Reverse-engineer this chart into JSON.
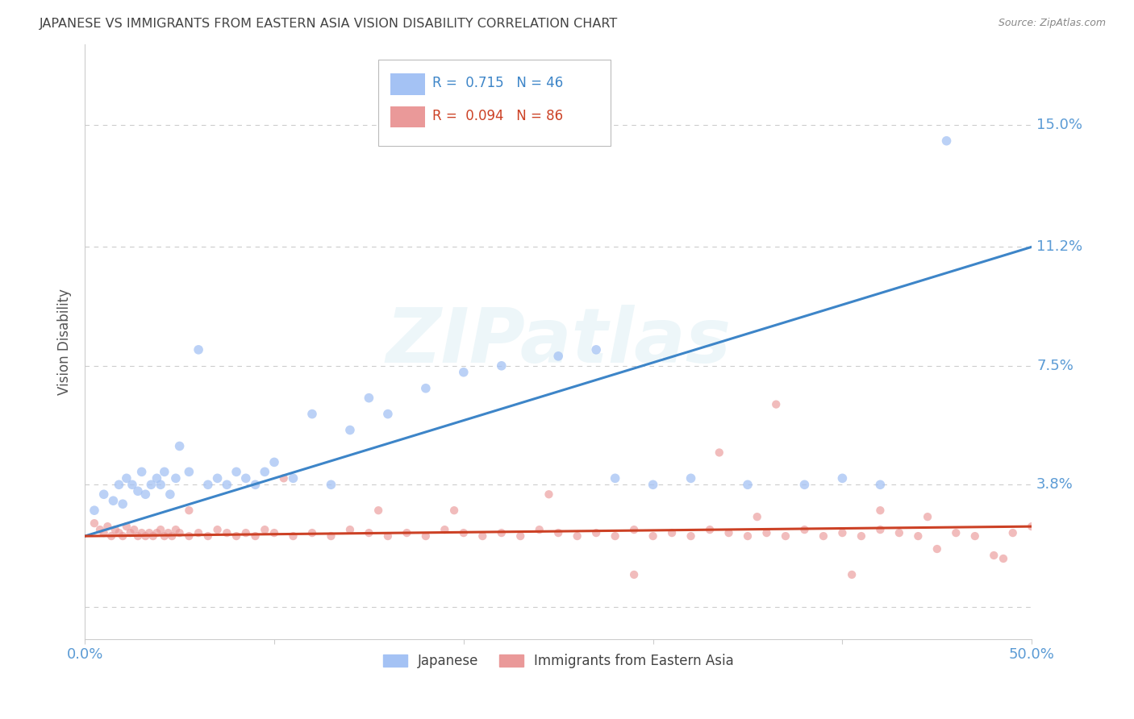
{
  "title": "JAPANESE VS IMMIGRANTS FROM EASTERN ASIA VISION DISABILITY CORRELATION CHART",
  "source": "Source: ZipAtlas.com",
  "ylabel": "Vision Disability",
  "watermark": "ZIPatlas",
  "xlim": [
    0.0,
    0.5
  ],
  "ylim": [
    -0.01,
    0.175
  ],
  "yticks": [
    0.0,
    0.038,
    0.075,
    0.112,
    0.15
  ],
  "ytick_labels": [
    "",
    "3.8%",
    "7.5%",
    "11.2%",
    "15.0%"
  ],
  "xticks": [
    0.0,
    0.1,
    0.2,
    0.3,
    0.4,
    0.5
  ],
  "xtick_labels": [
    "0.0%",
    "",
    "",
    "",
    "",
    "50.0%"
  ],
  "blue_color": "#a4c2f4",
  "pink_color": "#ea9999",
  "blue_line_color": "#3d85c8",
  "pink_line_color": "#cc4125",
  "blue_R": "0.715",
  "blue_N": "46",
  "pink_R": "0.094",
  "pink_N": "86",
  "legend_label_blue": "Japanese",
  "legend_label_pink": "Immigrants from Eastern Asia",
  "blue_scatter_x": [
    0.005,
    0.01,
    0.015,
    0.018,
    0.02,
    0.022,
    0.025,
    0.028,
    0.03,
    0.032,
    0.035,
    0.038,
    0.04,
    0.042,
    0.045,
    0.048,
    0.05,
    0.055,
    0.06,
    0.065,
    0.07,
    0.075,
    0.08,
    0.085,
    0.09,
    0.095,
    0.1,
    0.11,
    0.12,
    0.13,
    0.14,
    0.15,
    0.16,
    0.18,
    0.2,
    0.22,
    0.25,
    0.27,
    0.28,
    0.3,
    0.32,
    0.35,
    0.38,
    0.4,
    0.42,
    0.455
  ],
  "blue_scatter_y": [
    0.03,
    0.035,
    0.033,
    0.038,
    0.032,
    0.04,
    0.038,
    0.036,
    0.042,
    0.035,
    0.038,
    0.04,
    0.038,
    0.042,
    0.035,
    0.04,
    0.05,
    0.042,
    0.08,
    0.038,
    0.04,
    0.038,
    0.042,
    0.04,
    0.038,
    0.042,
    0.045,
    0.04,
    0.06,
    0.038,
    0.055,
    0.065,
    0.06,
    0.068,
    0.073,
    0.075,
    0.078,
    0.08,
    0.04,
    0.038,
    0.04,
    0.038,
    0.038,
    0.04,
    0.038,
    0.145
  ],
  "pink_scatter_x": [
    0.005,
    0.008,
    0.01,
    0.012,
    0.014,
    0.016,
    0.018,
    0.02,
    0.022,
    0.024,
    0.026,
    0.028,
    0.03,
    0.032,
    0.034,
    0.036,
    0.038,
    0.04,
    0.042,
    0.044,
    0.046,
    0.048,
    0.05,
    0.055,
    0.06,
    0.065,
    0.07,
    0.075,
    0.08,
    0.085,
    0.09,
    0.095,
    0.1,
    0.11,
    0.12,
    0.13,
    0.14,
    0.15,
    0.16,
    0.17,
    0.18,
    0.19,
    0.2,
    0.21,
    0.22,
    0.23,
    0.24,
    0.25,
    0.26,
    0.27,
    0.28,
    0.29,
    0.3,
    0.31,
    0.32,
    0.33,
    0.34,
    0.35,
    0.36,
    0.37,
    0.38,
    0.39,
    0.4,
    0.41,
    0.42,
    0.43,
    0.44,
    0.45,
    0.46,
    0.47,
    0.48,
    0.49,
    0.5,
    0.155,
    0.195,
    0.245,
    0.29,
    0.335,
    0.365,
    0.405,
    0.445,
    0.485,
    0.055,
    0.105,
    0.355,
    0.42
  ],
  "pink_scatter_y": [
    0.026,
    0.024,
    0.023,
    0.025,
    0.022,
    0.024,
    0.023,
    0.022,
    0.025,
    0.023,
    0.024,
    0.022,
    0.023,
    0.022,
    0.023,
    0.022,
    0.023,
    0.024,
    0.022,
    0.023,
    0.022,
    0.024,
    0.023,
    0.022,
    0.023,
    0.022,
    0.024,
    0.023,
    0.022,
    0.023,
    0.022,
    0.024,
    0.023,
    0.022,
    0.023,
    0.022,
    0.024,
    0.023,
    0.022,
    0.023,
    0.022,
    0.024,
    0.023,
    0.022,
    0.023,
    0.022,
    0.024,
    0.023,
    0.022,
    0.023,
    0.022,
    0.024,
    0.022,
    0.023,
    0.022,
    0.024,
    0.023,
    0.022,
    0.023,
    0.022,
    0.024,
    0.022,
    0.023,
    0.022,
    0.024,
    0.023,
    0.022,
    0.018,
    0.023,
    0.022,
    0.016,
    0.023,
    0.025,
    0.03,
    0.03,
    0.035,
    0.01,
    0.048,
    0.063,
    0.01,
    0.028,
    0.015,
    0.03,
    0.04,
    0.028,
    0.03
  ],
  "blue_line_x": [
    0.0,
    0.5
  ],
  "blue_line_y": [
    0.022,
    0.112
  ],
  "pink_line_x": [
    0.0,
    0.5
  ],
  "pink_line_y": [
    0.022,
    0.025
  ],
  "background_color": "#ffffff",
  "grid_color": "#cccccc",
  "title_color": "#444444",
  "tick_label_color": "#5b9bd5",
  "ylabel_color": "#555555",
  "marker_size_blue": 70,
  "marker_size_pink": 55,
  "line_width": 2.2
}
